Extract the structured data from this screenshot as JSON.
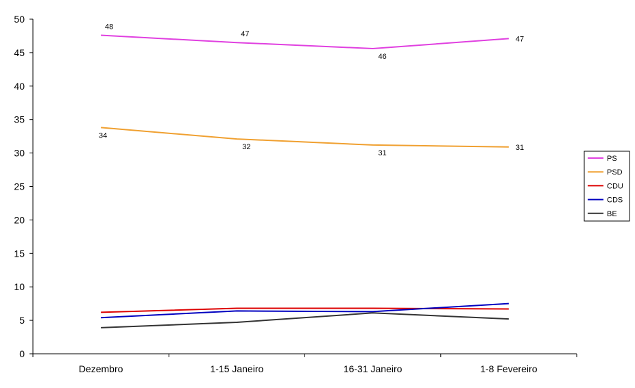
{
  "chart_data": {
    "type": "line",
    "categories": [
      "Dezembro",
      "1-15 Janeiro",
      "16-31 Janeiro",
      "1-8 Fevereiro"
    ],
    "ylim": [
      0,
      50
    ],
    "yticks": [
      0,
      5,
      10,
      15,
      20,
      25,
      30,
      35,
      40,
      45,
      50
    ],
    "grid": false,
    "legend_position": "right",
    "series": [
      {
        "name": "PS",
        "color": "#e040e0",
        "values": [
          47.6,
          46.5,
          45.6,
          47.1
        ],
        "labels": [
          "48",
          "47",
          "46",
          "47"
        ],
        "label_side": [
          "above",
          "above",
          "below",
          "right"
        ]
      },
      {
        "name": "PSD",
        "color": "#f0a030",
        "values": [
          33.8,
          32.1,
          31.2,
          30.9
        ],
        "labels": [
          "34",
          "32",
          "31",
          "31"
        ],
        "label_side": [
          "below",
          "below",
          "below",
          "right"
        ]
      },
      {
        "name": "CDU",
        "color": "#dd0000",
        "values": [
          6.2,
          6.8,
          6.8,
          6.7
        ]
      },
      {
        "name": "CDS",
        "color": "#0000c0",
        "values": [
          5.4,
          6.4,
          6.3,
          7.5
        ]
      },
      {
        "name": "BE",
        "color": "#333333",
        "values": [
          3.9,
          4.7,
          6.1,
          5.2
        ]
      }
    ]
  }
}
